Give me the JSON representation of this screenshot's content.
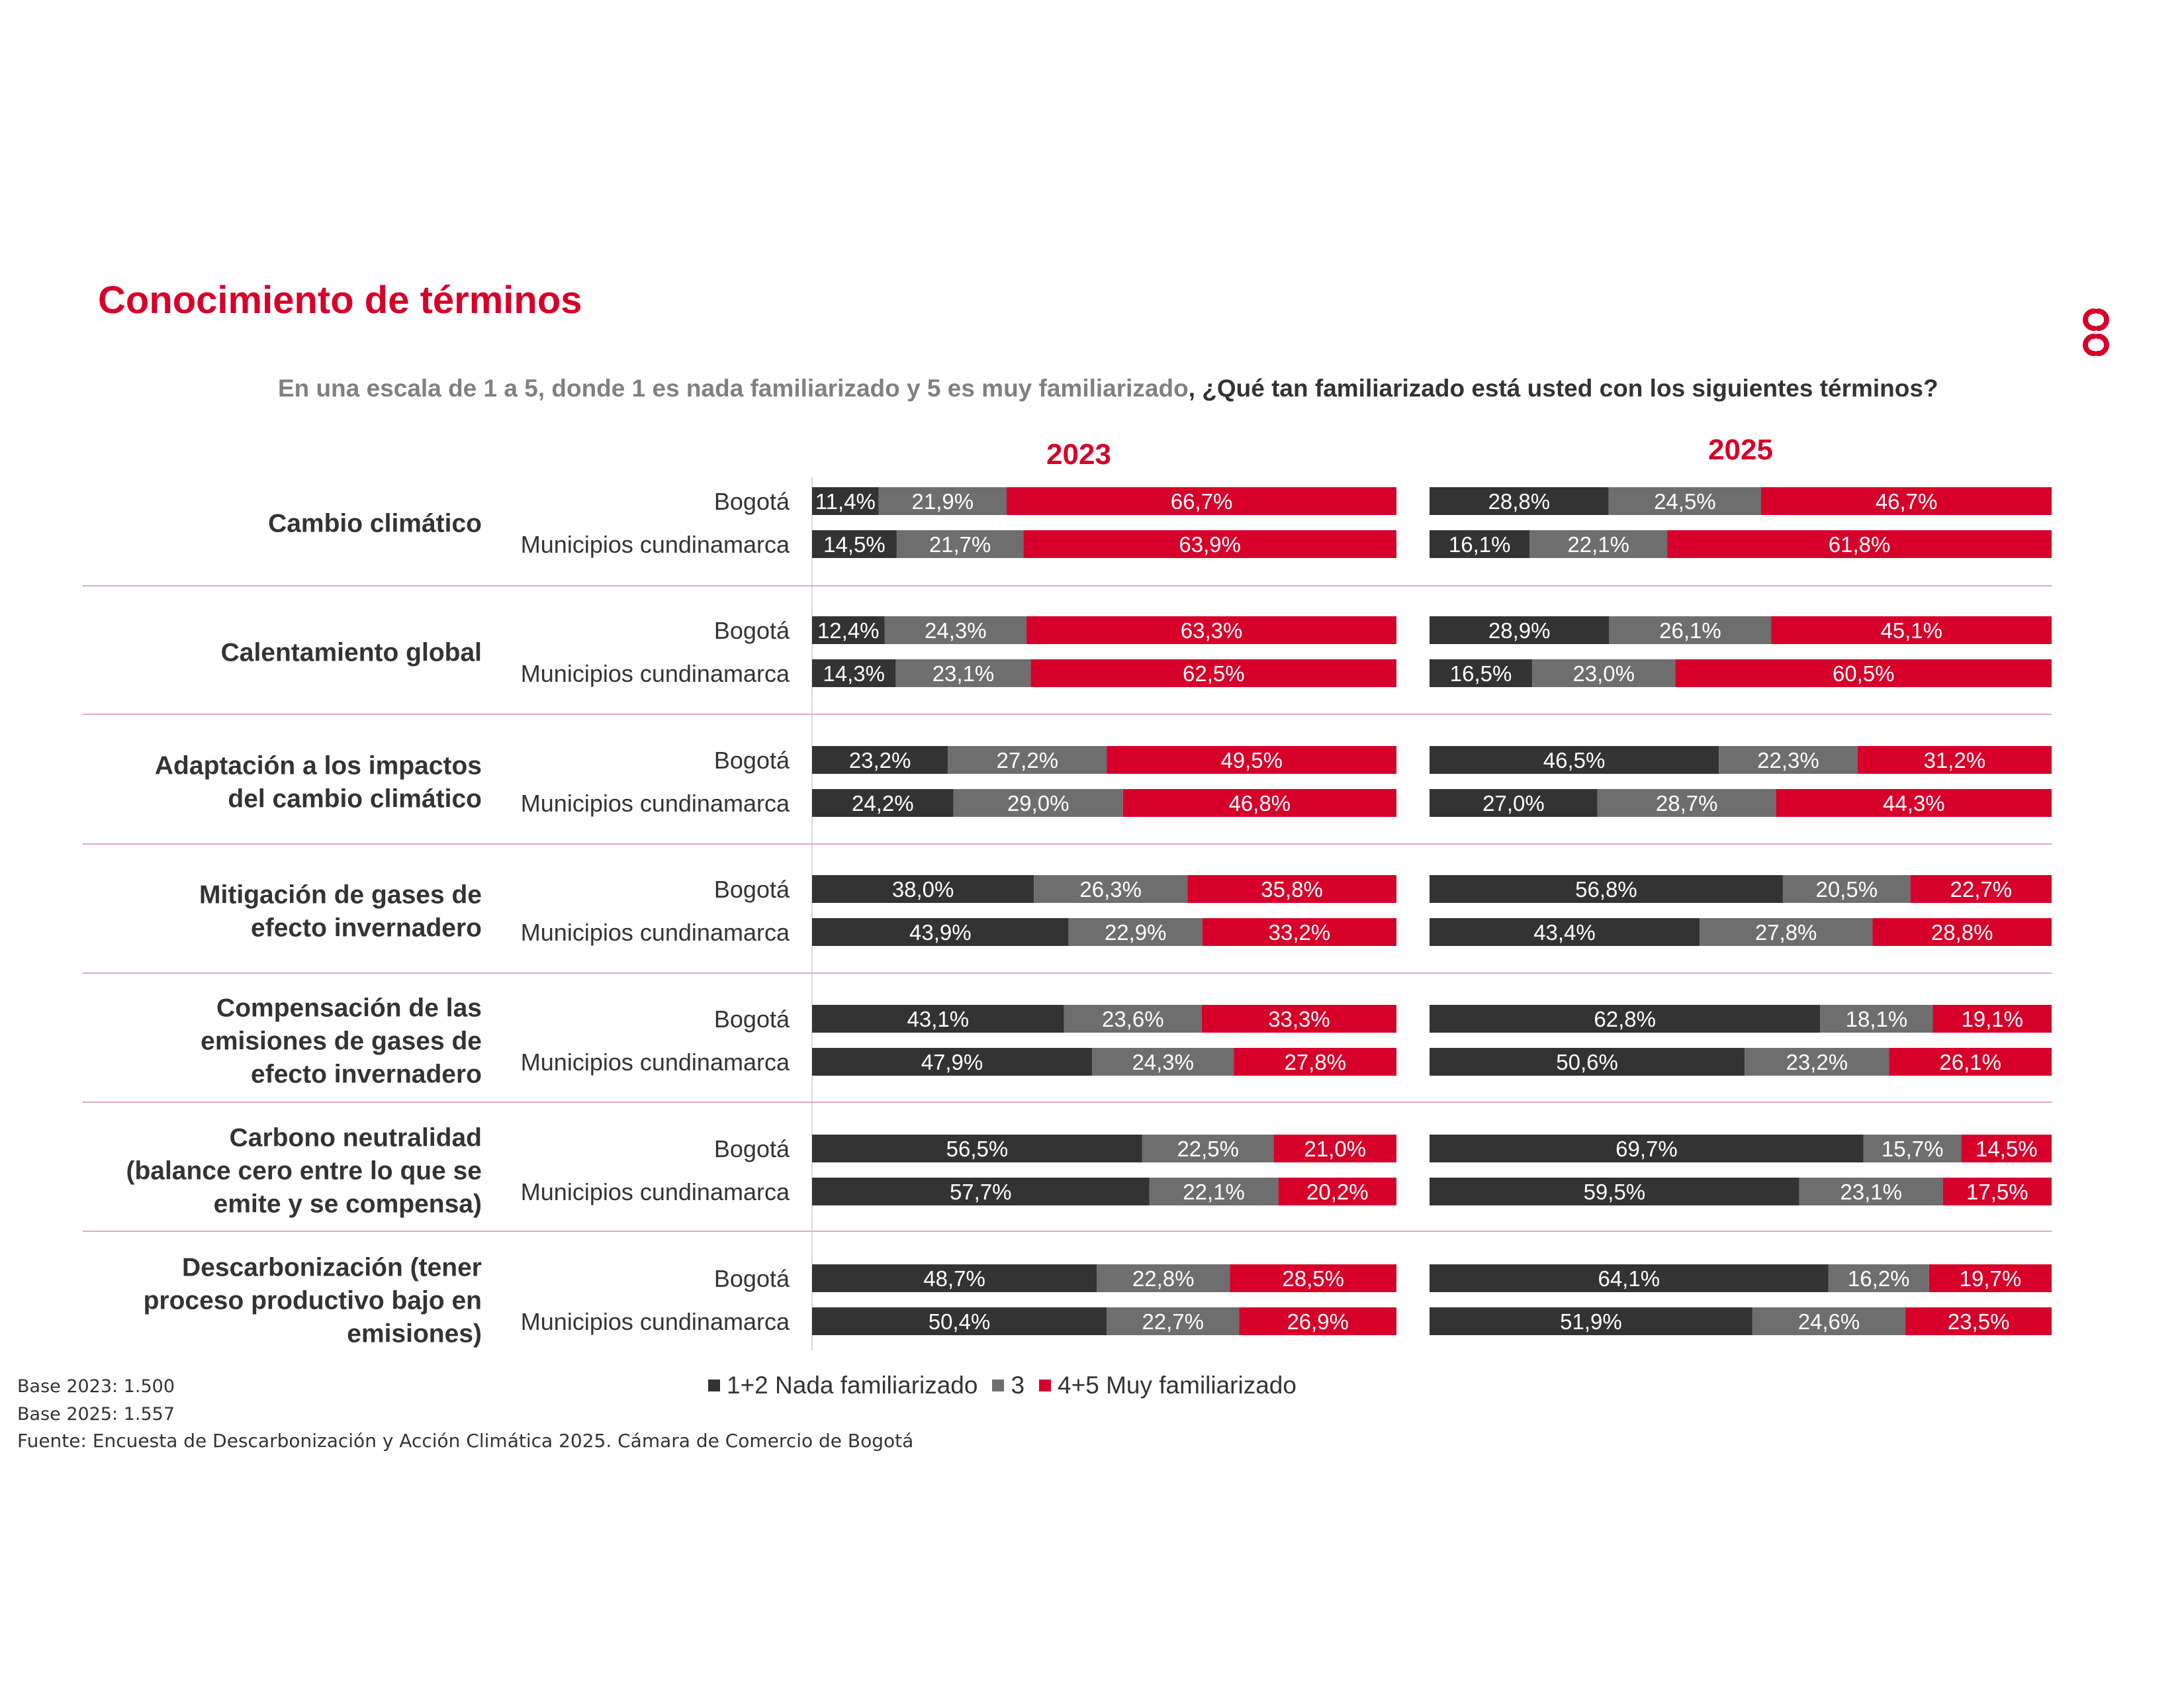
{
  "title": "Conocimiento de términos",
  "question": {
    "part1": "En una escala de 1 a 5, donde 1 es nada familiarizado y 5 es muy familiarizado",
    "part2": ", ¿Qué tan familiarizado está usted con los siguientes términos?"
  },
  "colors": {
    "accent": "#d6002a",
    "dark": "#333333",
    "mid": "#6e6e6e",
    "grey_text": "#808080"
  },
  "logo_icon": "camara-comercio-logo-icon",
  "legend": [
    {
      "label": "1+2 Nada familiarizado",
      "color": "#333333"
    },
    {
      "label": "3",
      "color": "#6e6e6e"
    },
    {
      "label": "4+5 Muy familiarizado",
      "color": "#d6002a"
    }
  ],
  "base_notes": [
    "Base 2023: 1.500",
    "Base 2025: 1.557"
  ],
  "source": "Fuente: Encuesta de Descarbonización y Acción Climática 2025. Cámara de Comercio de Bogotá",
  "chart_data": {
    "type": "bar",
    "stacked": true,
    "orientation": "horizontal",
    "unit": "%",
    "panels": [
      "2023",
      "2025"
    ],
    "series_names": [
      "1+2 Nada familiarizado",
      "3",
      "4+5 Muy familiarizado"
    ],
    "groups": [
      {
        "term_lines": [
          "Cambio climático"
        ],
        "rows": [
          {
            "label": "Bogotá",
            "values": {
              "2023": [
                11.4,
                21.9,
                66.7
              ],
              "2025": [
                28.8,
                24.5,
                46.7
              ]
            }
          },
          {
            "label": "Municipios cundinamarca",
            "values": {
              "2023": [
                14.5,
                21.7,
                63.9
              ],
              "2025": [
                16.1,
                22.1,
                61.8
              ]
            }
          }
        ]
      },
      {
        "term_lines": [
          "Calentamiento global"
        ],
        "rows": [
          {
            "label": "Bogotá",
            "values": {
              "2023": [
                12.4,
                24.3,
                63.3
              ],
              "2025": [
                28.9,
                26.1,
                45.1
              ]
            }
          },
          {
            "label": "Municipios cundinamarca",
            "values": {
              "2023": [
                14.3,
                23.1,
                62.5
              ],
              "2025": [
                16.5,
                23.0,
                60.5
              ]
            }
          }
        ]
      },
      {
        "term_lines": [
          "Adaptación a los impactos",
          "del cambio climático"
        ],
        "rows": [
          {
            "label": "Bogotá",
            "values": {
              "2023": [
                23.2,
                27.2,
                49.5
              ],
              "2025": [
                46.5,
                22.3,
                31.2
              ]
            }
          },
          {
            "label": "Municipios cundinamarca",
            "values": {
              "2023": [
                24.2,
                29.0,
                46.8
              ],
              "2025": [
                27.0,
                28.7,
                44.3
              ]
            }
          }
        ]
      },
      {
        "term_lines": [
          "Mitigación de gases de",
          "efecto invernadero"
        ],
        "rows": [
          {
            "label": "Bogotá",
            "values": {
              "2023": [
                38.0,
                26.3,
                35.8
              ],
              "2025": [
                56.8,
                20.5,
                22.7
              ]
            }
          },
          {
            "label": "Municipios cundinamarca",
            "values": {
              "2023": [
                43.9,
                22.9,
                33.2
              ],
              "2025": [
                43.4,
                27.8,
                28.8
              ]
            }
          }
        ]
      },
      {
        "term_lines": [
          "Compensación de las",
          "emisiones de gases de",
          "efecto invernadero"
        ],
        "rows": [
          {
            "label": "Bogotá",
            "values": {
              "2023": [
                43.1,
                23.6,
                33.3
              ],
              "2025": [
                62.8,
                18.1,
                19.1
              ]
            }
          },
          {
            "label": "Municipios cundinamarca",
            "values": {
              "2023": [
                47.9,
                24.3,
                27.8
              ],
              "2025": [
                50.6,
                23.2,
                26.1
              ]
            }
          }
        ]
      },
      {
        "term_lines": [
          "Carbono neutralidad",
          "(balance cero entre lo que se",
          "emite y se compensa)"
        ],
        "rows": [
          {
            "label": "Bogotá",
            "values": {
              "2023": [
                56.5,
                22.5,
                21.0
              ],
              "2025": [
                69.7,
                15.7,
                14.5
              ]
            }
          },
          {
            "label": "Municipios cundinamarca",
            "values": {
              "2023": [
                57.7,
                22.1,
                20.2
              ],
              "2025": [
                59.5,
                23.1,
                17.5
              ]
            }
          }
        ]
      },
      {
        "term_lines": [
          "Descarbonización (tener",
          "proceso productivo bajo en",
          "emisiones)"
        ],
        "rows": [
          {
            "label": "Bogotá",
            "values": {
              "2023": [
                48.7,
                22.8,
                28.5
              ],
              "2025": [
                64.1,
                16.2,
                19.7
              ]
            }
          },
          {
            "label": "Municipios cundinamarca",
            "values": {
              "2023": [
                50.4,
                22.7,
                26.9
              ],
              "2025": [
                51.9,
                24.6,
                23.5
              ]
            }
          }
        ]
      }
    ]
  }
}
